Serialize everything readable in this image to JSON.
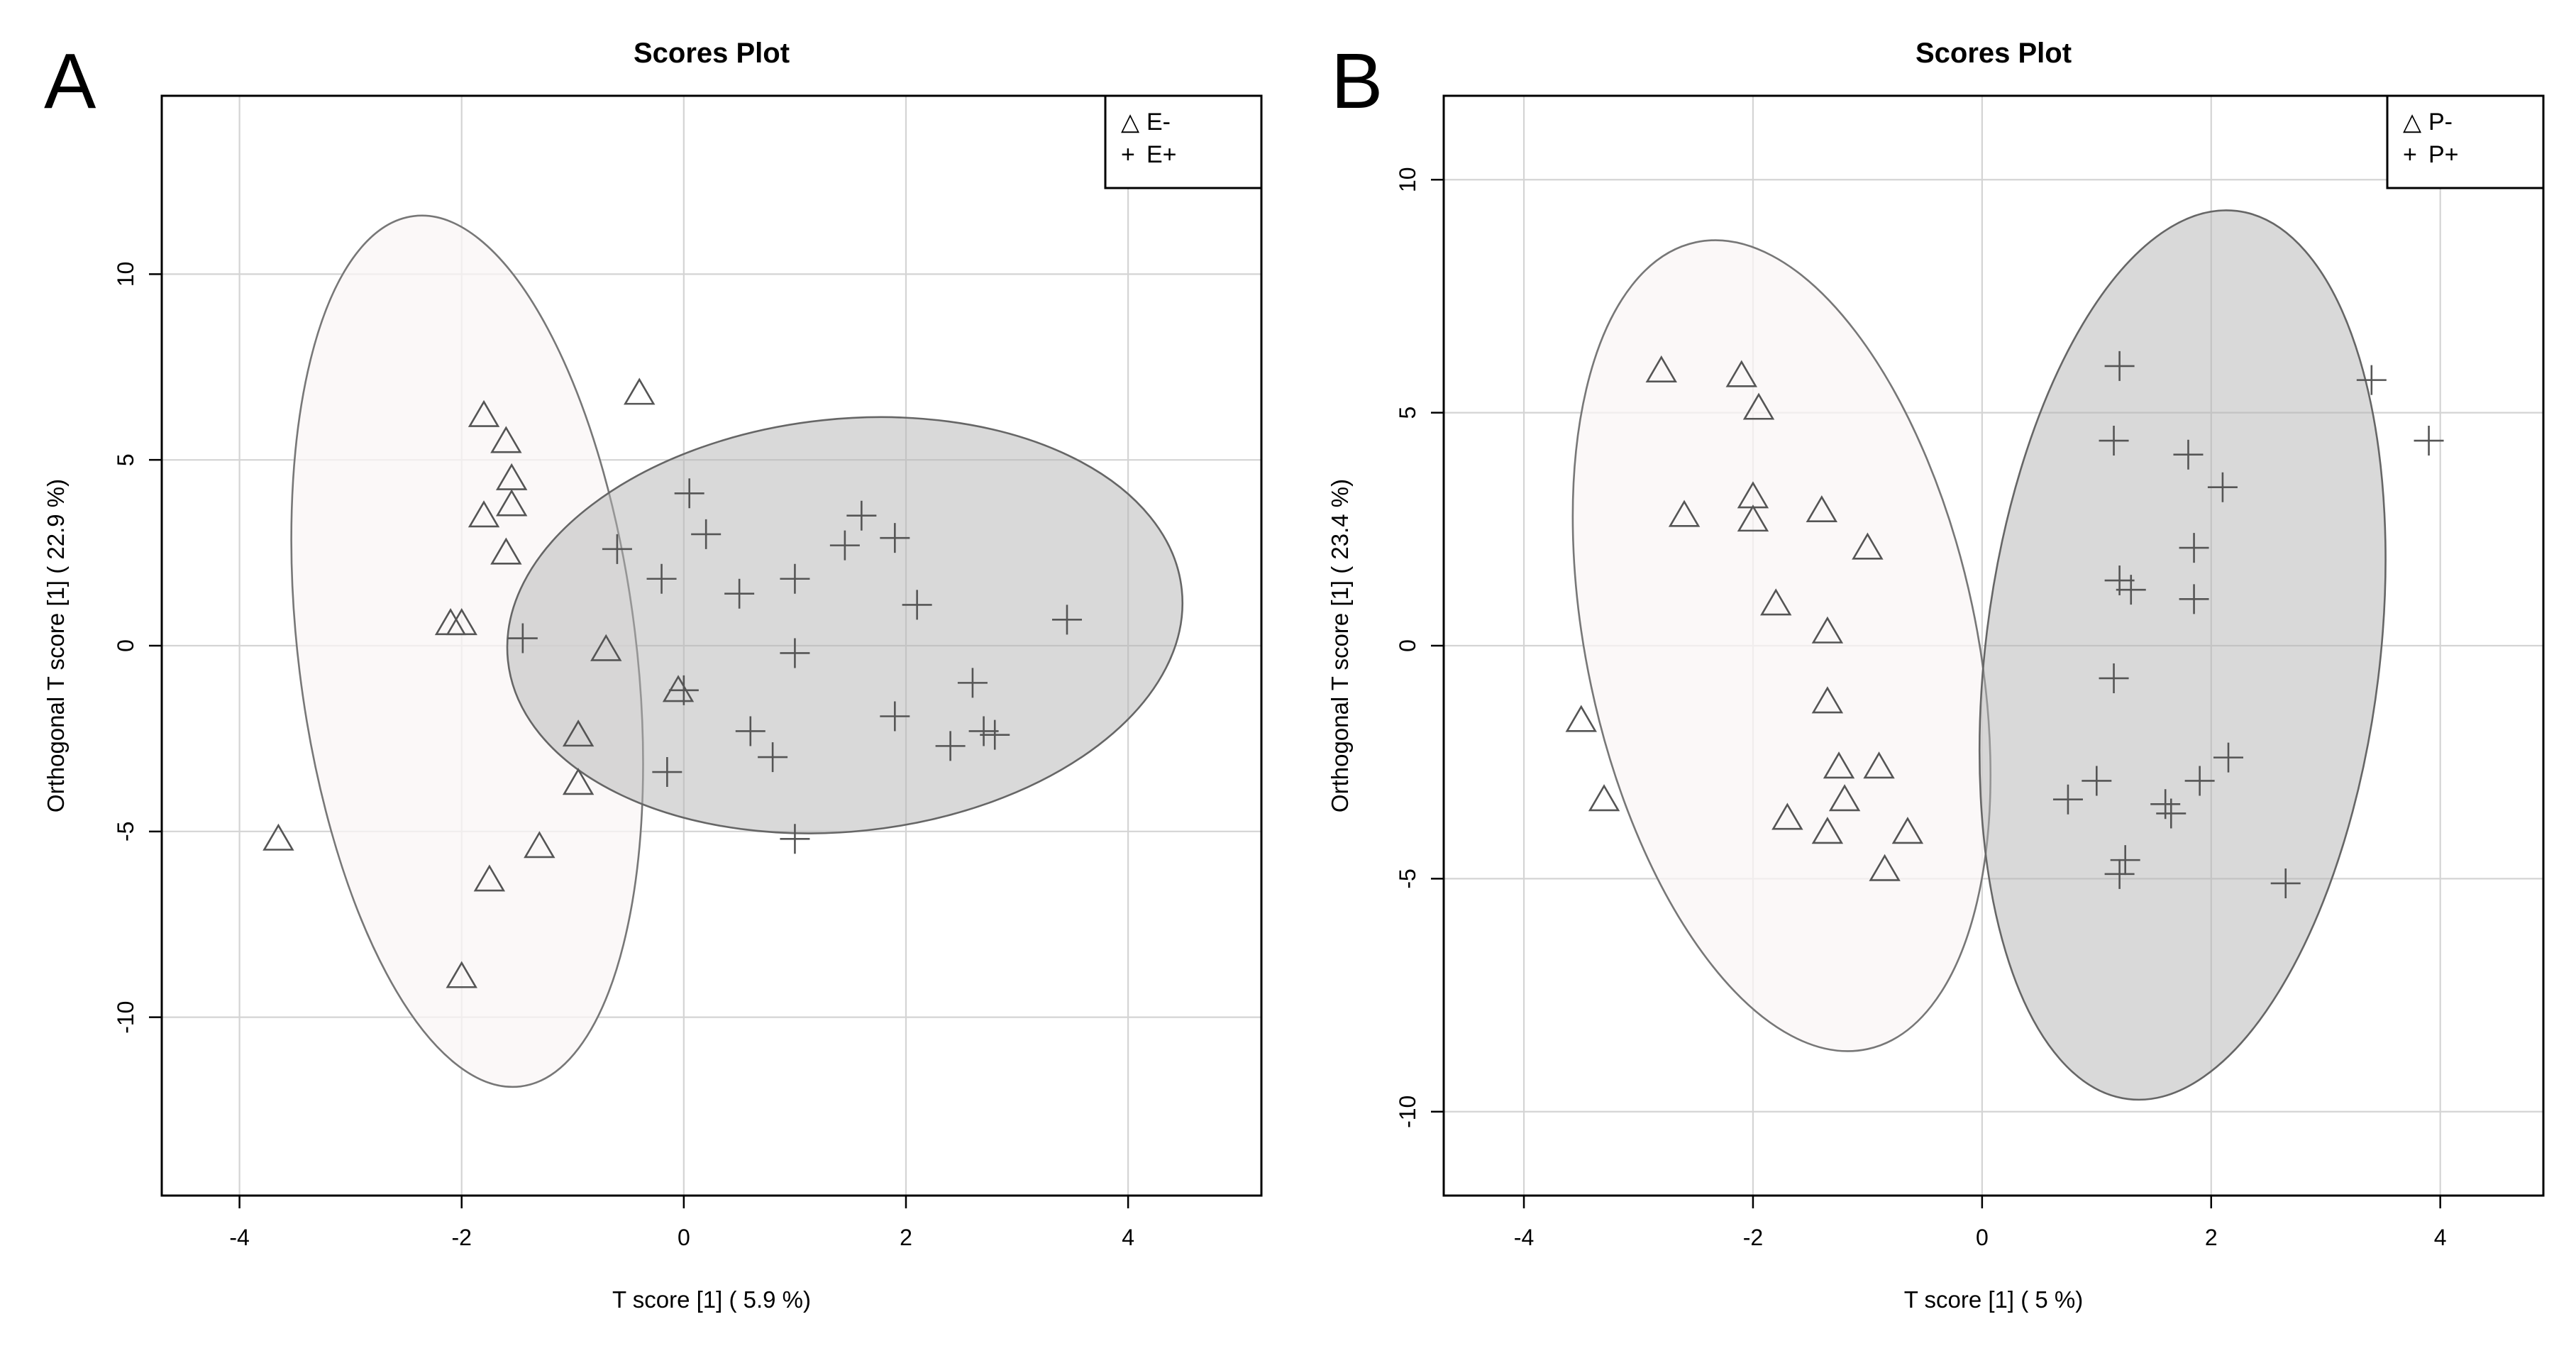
{
  "chart_data": [
    {
      "type": "scatter",
      "panel_label": "A",
      "title": "Scores Plot",
      "xlabel": "T score [1] ( 5.9 %)",
      "ylabel": "Orthogonal T score [1] ( 22.9 %)",
      "xlim": [
        -4.7,
        5.2
      ],
      "ylim": [
        -14.8,
        14.8
      ],
      "xticks": [
        -4,
        -2,
        0,
        2,
        4
      ],
      "yticks": [
        -10,
        -5,
        0,
        5,
        10
      ],
      "xtick_labels": [
        "-4",
        "-2",
        "0",
        "2",
        "4"
      ],
      "ytick_labels": [
        "-10",
        "-5",
        "0",
        "5",
        "10"
      ],
      "grid": true,
      "legend_position": "top-right",
      "series": [
        {
          "name": "E-",
          "marker": "triangle",
          "legend_symbol": "△",
          "ellipse": {
            "cx": -1.95,
            "cy": -0.15,
            "rx": 1.52,
            "ry": 11.8,
            "angle_deg": -7
          },
          "points": [
            [
              -1.8,
              6.2
            ],
            [
              -0.4,
              6.8
            ],
            [
              -1.6,
              5.5
            ],
            [
              -1.55,
              4.5
            ],
            [
              -1.55,
              3.8
            ],
            [
              -1.8,
              3.5
            ],
            [
              -1.6,
              2.5
            ],
            [
              -2.1,
              0.6
            ],
            [
              -2.0,
              0.6
            ],
            [
              -0.7,
              -0.1
            ],
            [
              -0.05,
              -1.2
            ],
            [
              -0.95,
              -2.4
            ],
            [
              -0.95,
              -3.7
            ],
            [
              -3.65,
              -5.2
            ],
            [
              -1.3,
              -5.4
            ],
            [
              -1.75,
              -6.3
            ],
            [
              -2.0,
              -8.9
            ]
          ]
        },
        {
          "name": "E+",
          "marker": "plus",
          "legend_symbol": "+",
          "ellipse": {
            "cx": 1.45,
            "cy": 0.55,
            "rx": 3.05,
            "ry": 5.55,
            "angle_deg": -6
          },
          "points": [
            [
              0.05,
              4.1
            ],
            [
              1.6,
              3.5
            ],
            [
              0.2,
              3.0
            ],
            [
              1.45,
              2.7
            ],
            [
              1.9,
              2.9
            ],
            [
              -0.6,
              2.6
            ],
            [
              -0.2,
              1.8
            ],
            [
              1.0,
              1.8
            ],
            [
              0.5,
              1.4
            ],
            [
              2.1,
              1.1
            ],
            [
              -1.45,
              0.2
            ],
            [
              3.45,
              0.7
            ],
            [
              1.0,
              -0.2
            ],
            [
              0.0,
              -1.2
            ],
            [
              2.6,
              -1.0
            ],
            [
              1.9,
              -1.9
            ],
            [
              0.6,
              -2.3
            ],
            [
              2.7,
              -2.3
            ],
            [
              2.8,
              -2.4
            ],
            [
              0.8,
              -3.0
            ],
            [
              2.4,
              -2.7
            ],
            [
              -0.15,
              -3.4
            ],
            [
              1.0,
              -5.2
            ]
          ]
        }
      ]
    },
    {
      "type": "scatter",
      "panel_label": "B",
      "title": "Scores Plot",
      "xlabel": "T score [1] ( 5 %)",
      "ylabel": "Orthogonal T score [1] ( 23.4 %)",
      "xlim": [
        -4.7,
        4.9
      ],
      "ylim": [
        -11.8,
        11.8
      ],
      "xticks": [
        -4,
        -2,
        0,
        2,
        4
      ],
      "yticks": [
        -10,
        -5,
        0,
        5,
        10
      ],
      "xtick_labels": [
        "-4",
        "-2",
        "0",
        "2",
        "4"
      ],
      "ytick_labels": [
        "-10",
        "-5",
        "0",
        "5",
        "10"
      ],
      "grid": true,
      "legend_position": "top-right",
      "series": [
        {
          "name": "P-",
          "marker": "triangle",
          "legend_symbol": "△",
          "ellipse": {
            "cx": -1.75,
            "cy": 0.0,
            "rx": 1.7,
            "ry": 8.85,
            "angle_deg": -12
          },
          "points": [
            [
              -2.8,
              5.9
            ],
            [
              -2.1,
              5.8
            ],
            [
              -1.95,
              5.1
            ],
            [
              -2.0,
              3.2
            ],
            [
              -2.0,
              2.7
            ],
            [
              -2.6,
              2.8
            ],
            [
              -1.4,
              2.9
            ],
            [
              -1.0,
              2.1
            ],
            [
              -1.8,
              0.9
            ],
            [
              -1.35,
              0.3
            ],
            [
              -1.35,
              -1.2
            ],
            [
              -3.5,
              -1.6
            ],
            [
              -3.3,
              -3.3
            ],
            [
              -1.25,
              -2.6
            ],
            [
              -0.9,
              -2.6
            ],
            [
              -1.2,
              -3.3
            ],
            [
              -1.7,
              -3.7
            ],
            [
              -1.35,
              -4.0
            ],
            [
              -0.65,
              -4.0
            ],
            [
              -0.85,
              -4.8
            ]
          ]
        },
        {
          "name": "P+",
          "marker": "plus",
          "legend_symbol": "+",
          "ellipse": {
            "cx": 1.75,
            "cy": -0.2,
            "rx": 1.72,
            "ry": 9.6,
            "angle_deg": 7
          },
          "points": [
            [
              1.2,
              6.0
            ],
            [
              3.4,
              5.7
            ],
            [
              1.15,
              4.4
            ],
            [
              1.8,
              4.1
            ],
            [
              3.9,
              4.4
            ],
            [
              2.1,
              3.4
            ],
            [
              1.85,
              2.1
            ],
            [
              1.2,
              1.4
            ],
            [
              1.3,
              1.2
            ],
            [
              1.85,
              1.0
            ],
            [
              1.15,
              -0.7
            ],
            [
              2.15,
              -2.4
            ],
            [
              1.0,
              -2.9
            ],
            [
              1.9,
              -2.9
            ],
            [
              0.75,
              -3.3
            ],
            [
              1.6,
              -3.4
            ],
            [
              1.65,
              -3.6
            ],
            [
              1.25,
              -4.6
            ],
            [
              1.2,
              -4.9
            ],
            [
              2.65,
              -5.1
            ]
          ]
        }
      ]
    }
  ]
}
